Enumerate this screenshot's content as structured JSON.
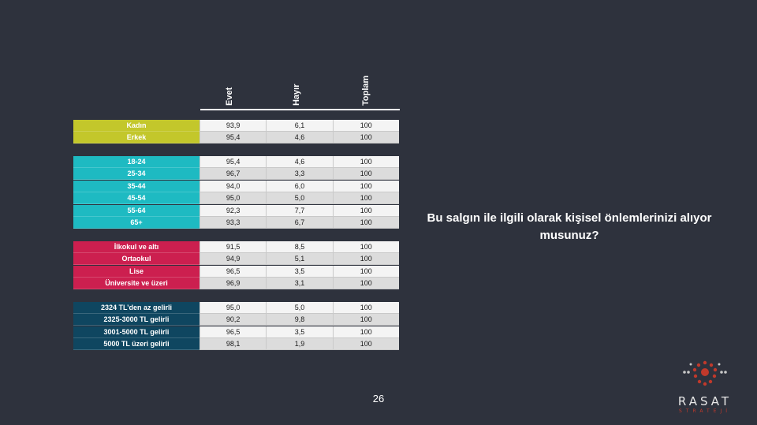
{
  "table": {
    "columns": [
      "Evet",
      "Hayır",
      "Toplam"
    ],
    "groups": [
      {
        "color": "#c3c72b",
        "rows": [
          {
            "label": "Kadın",
            "values": [
              "93,9",
              "6,1",
              "100"
            ]
          },
          {
            "label": "Erkek",
            "values": [
              "95,4",
              "4,6",
              "100"
            ]
          }
        ]
      },
      {
        "color": "#1ebac2",
        "rows": [
          {
            "label": "18-24",
            "values": [
              "95,4",
              "4,6",
              "100"
            ]
          },
          {
            "label": "25-34",
            "values": [
              "96,7",
              "3,3",
              "100"
            ]
          },
          {
            "label": "35-44",
            "values": [
              "94,0",
              "6,0",
              "100"
            ]
          },
          {
            "label": "45-54",
            "values": [
              "95,0",
              "5,0",
              "100"
            ]
          },
          {
            "label": "55-64",
            "values": [
              "92,3",
              "7,7",
              "100"
            ]
          },
          {
            "label": "65+",
            "values": [
              "93,3",
              "6,7",
              "100"
            ]
          }
        ]
      },
      {
        "color": "#cc1f4f",
        "rows": [
          {
            "label": "İlkokul ve altı",
            "values": [
              "91,5",
              "8,5",
              "100"
            ]
          },
          {
            "label": "Ortaokul",
            "values": [
              "94,9",
              "5,1",
              "100"
            ]
          },
          {
            "label": "Lise",
            "values": [
              "96,5",
              "3,5",
              "100"
            ]
          },
          {
            "label": "Üniversite ve üzeri",
            "values": [
              "96,9",
              "3,1",
              "100"
            ]
          }
        ]
      },
      {
        "color": "#0f4660",
        "rows": [
          {
            "label": "2324 TL’den az gelirli",
            "values": [
              "95,0",
              "5,0",
              "100"
            ]
          },
          {
            "label": "2325-3000 TL gelirli",
            "values": [
              "90,2",
              "9,8",
              "100"
            ]
          },
          {
            "label": "3001-5000 TL gelirli",
            "values": [
              "96,5",
              "3,5",
              "100"
            ]
          },
          {
            "label": "5000 TL üzeri gelirli",
            "values": [
              "98,1",
              "1,9",
              "100"
            ]
          }
        ]
      }
    ]
  },
  "question": "Bu salgın ile ilgili olarak kişisel önlemlerinizi alıyor musunuz?",
  "page_number": "26",
  "logo": {
    "name": "RASAT",
    "sub": "STRATEJİ"
  }
}
